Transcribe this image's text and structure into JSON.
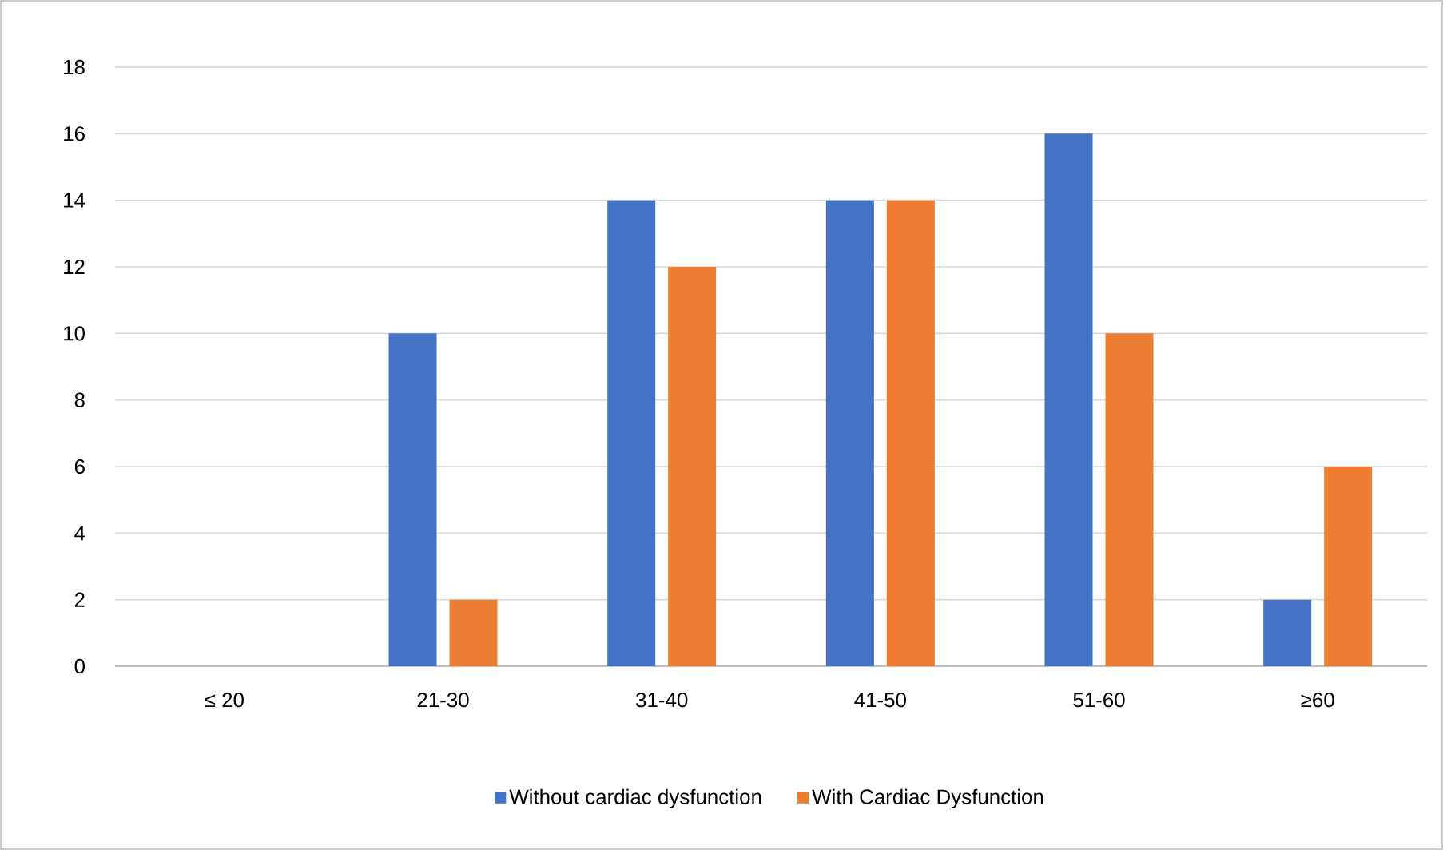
{
  "chart_data": {
    "type": "bar",
    "categories": [
      "≤ 20",
      "21-30",
      "31-40",
      "41-50",
      "51-60",
      "≥60"
    ],
    "series": [
      {
        "name": "Without cardiac dysfunction",
        "color": "#4472c4",
        "values": [
          0,
          10,
          14,
          14,
          16,
          2
        ]
      },
      {
        "name": "With Cardiac Dysfunction",
        "color": "#ed7d31",
        "values": [
          0,
          2,
          12,
          14,
          10,
          6
        ]
      }
    ],
    "ylim": [
      0,
      18
    ],
    "yticks": [
      0,
      2,
      4,
      6,
      8,
      10,
      12,
      14,
      16,
      18
    ],
    "grid": "y",
    "legend": "bottom"
  }
}
